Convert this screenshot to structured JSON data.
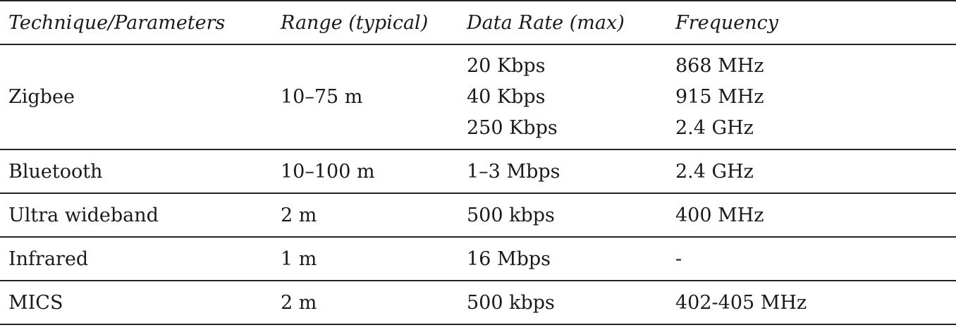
{
  "table": {
    "headers": [
      "Technique/Parameters",
      "Range (typical)",
      "Data Rate (max)",
      "Frequency"
    ],
    "rows": [
      {
        "technique": "Zigbee",
        "range": "10–75 m",
        "data_rate": [
          "20 Kbps",
          "40 Kbps",
          "250 Kbps"
        ],
        "frequency": [
          "868 MHz",
          "915 MHz",
          "2.4 GHz"
        ]
      },
      {
        "technique": "Bluetooth",
        "range": "10–100 m",
        "data_rate": "1–3 Mbps",
        "frequency": "2.4 GHz"
      },
      {
        "technique": "Ultra wideband",
        "range": "2 m",
        "data_rate": "500 kbps",
        "frequency": "400 MHz"
      },
      {
        "technique": "Infrared",
        "range": "1 m",
        "data_rate": "16 Mbps",
        "frequency": "-"
      },
      {
        "technique": "MICS",
        "range": "2 m",
        "data_rate": "500 kbps",
        "frequency": "402-405 MHz"
      }
    ]
  }
}
